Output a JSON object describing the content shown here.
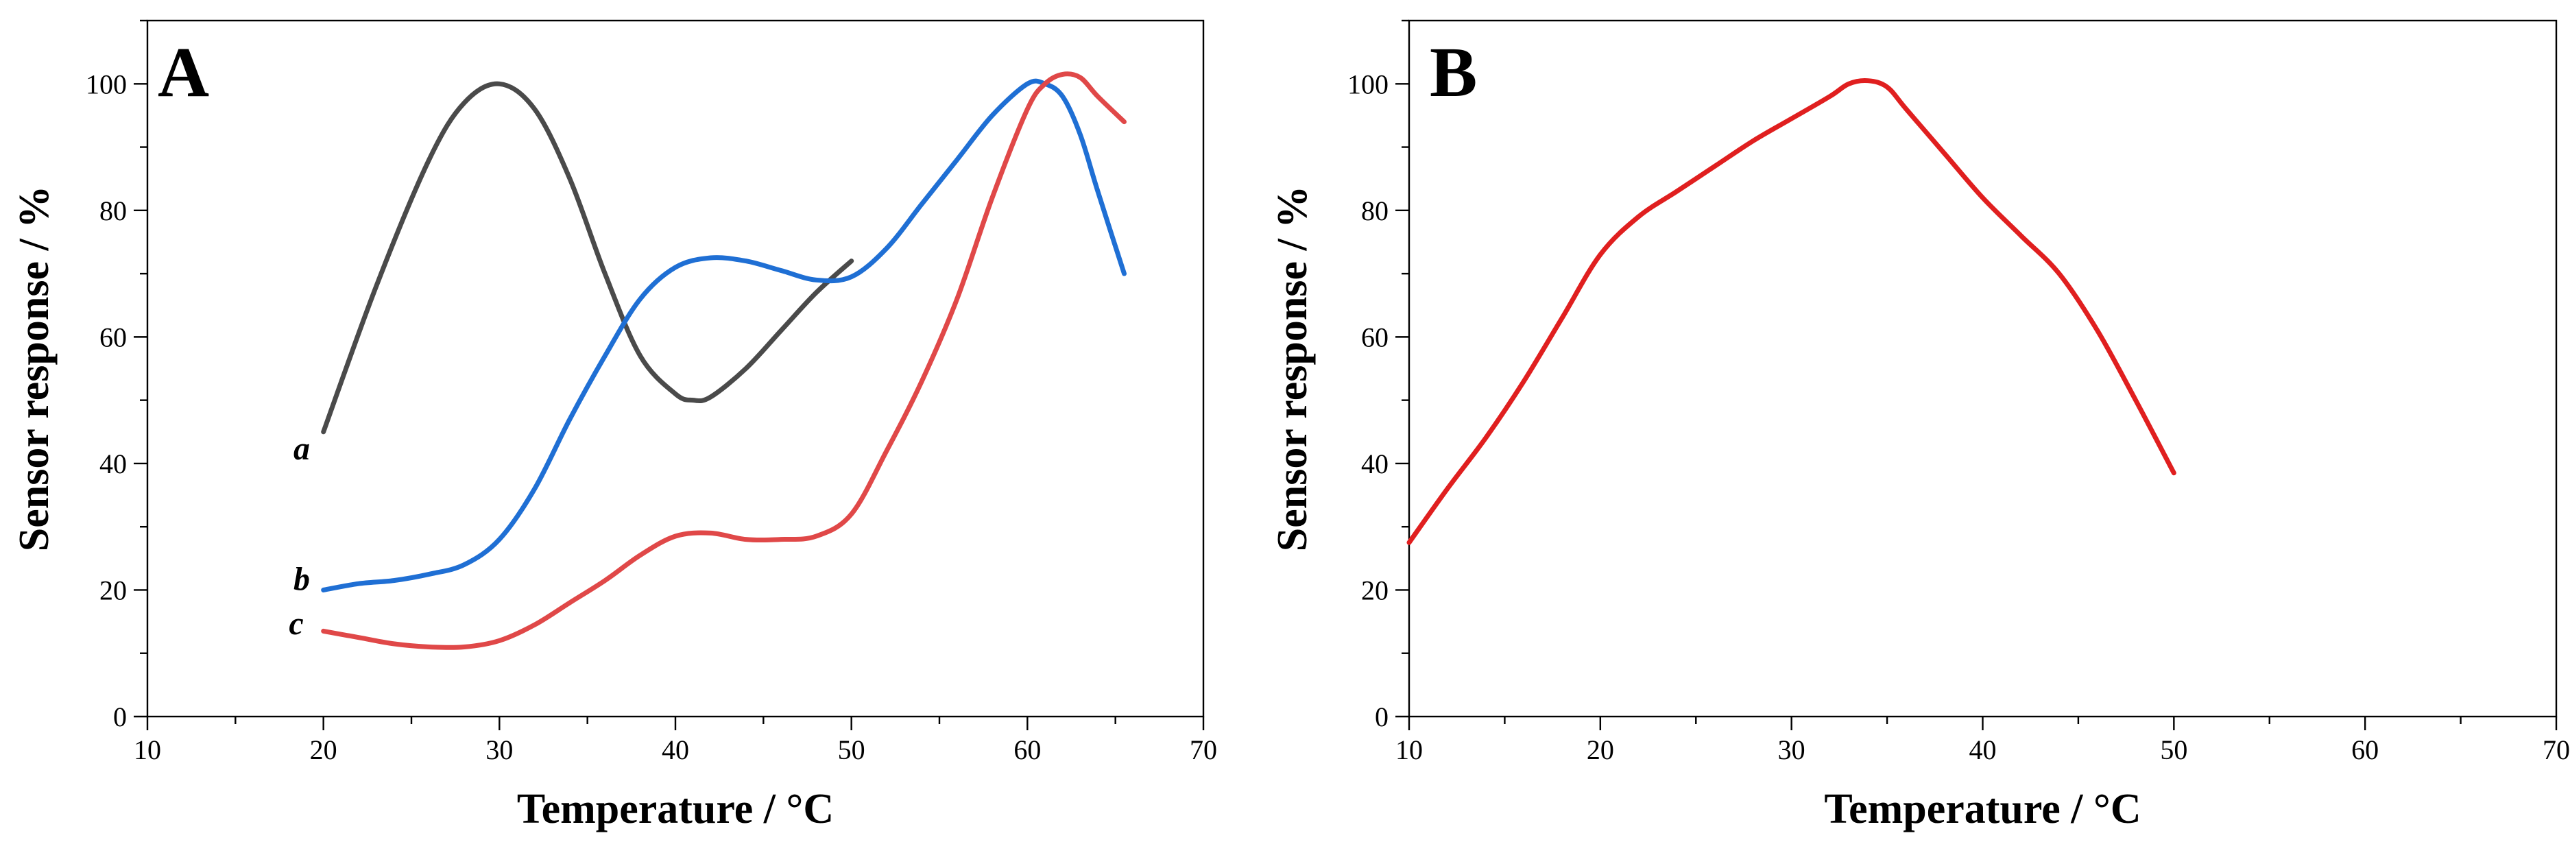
{
  "chart_data": [
    {
      "type": "line",
      "panel_label": "A",
      "xlabel": "Temperature / °C",
      "ylabel": "Sensor response / %",
      "xlim": [
        10,
        70
      ],
      "ylim": [
        0,
        110
      ],
      "xticks": [
        10,
        20,
        30,
        40,
        50,
        60,
        70
      ],
      "yticks": [
        0,
        20,
        40,
        60,
        80,
        100
      ],
      "series": [
        {
          "name": "a",
          "color": "#4a4a4a",
          "x": [
            20,
            23,
            26,
            28,
            30,
            32,
            34,
            36,
            38,
            40,
            41,
            42,
            44,
            46,
            48,
            50
          ],
          "y": [
            45,
            68,
            88,
            97,
            100,
            96,
            85,
            70,
            57,
            51,
            50,
            50.5,
            55,
            61,
            67,
            72
          ]
        },
        {
          "name": "b",
          "color": "#1f6fd4",
          "x": [
            20,
            22,
            24,
            26,
            28,
            30,
            32,
            34,
            36,
            38,
            40,
            42,
            44,
            46,
            48,
            50,
            52,
            54,
            56,
            58,
            60,
            61,
            62,
            63,
            64,
            65.5
          ],
          "y": [
            20,
            21,
            21.5,
            22.5,
            24,
            28,
            36,
            47,
            57,
            66,
            71,
            72.5,
            72,
            70.5,
            69,
            69.5,
            74,
            81,
            88,
            95,
            100,
            100,
            98,
            92,
            83,
            70
          ]
        },
        {
          "name": "c",
          "color": "#e04848",
          "x": [
            20,
            22,
            24,
            26,
            28,
            30,
            32,
            34,
            36,
            38,
            40,
            42,
            44,
            46,
            48,
            50,
            52,
            54,
            56,
            58,
            60,
            61,
            62,
            63,
            64,
            65.5
          ],
          "y": [
            13.5,
            12.5,
            11.5,
            11,
            11,
            12,
            14.5,
            18,
            21.5,
            25.5,
            28.5,
            29,
            28,
            28,
            28.5,
            32,
            42,
            53,
            66,
            82,
            96,
            100,
            101.5,
            101,
            98,
            94
          ]
        }
      ]
    },
    {
      "type": "line",
      "panel_label": "B",
      "xlabel": "Temperature / °C",
      "ylabel": "Sensor response / %",
      "xlim": [
        10,
        70
      ],
      "ylim": [
        0,
        110
      ],
      "xticks": [
        10,
        20,
        30,
        40,
        50,
        60,
        70
      ],
      "yticks": [
        0,
        20,
        40,
        60,
        80,
        100
      ],
      "series": [
        {
          "name": "sensor",
          "color": "#e01f1f",
          "x": [
            10,
            12,
            14,
            16,
            18,
            20,
            22,
            24,
            26,
            28,
            30,
            32,
            33,
            34,
            35,
            36,
            38,
            40,
            42,
            44,
            46,
            48,
            50
          ],
          "y": [
            27.5,
            36,
            44,
            53,
            63,
            73,
            79,
            83,
            87,
            91,
            94.5,
            98,
            100,
            100.5,
            99.5,
            96,
            89,
            82,
            76,
            70,
            61,
            50,
            38.5
          ]
        }
      ]
    }
  ]
}
